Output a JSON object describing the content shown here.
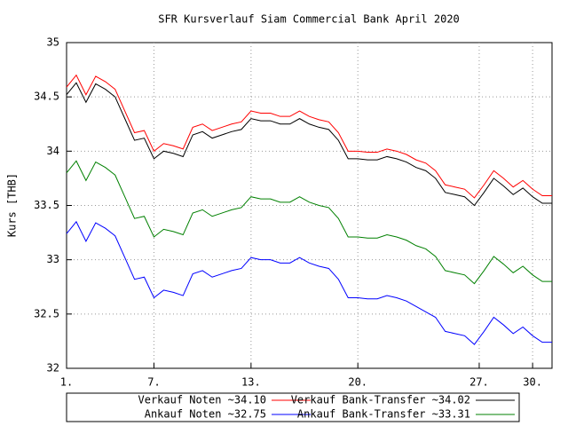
{
  "chart_data": {
    "type": "line",
    "title": "SFR Kursverlauf Siam Commercial Bank April 2020",
    "y_label": "Kurs [THB]",
    "x": [
      0,
      2,
      4,
      6,
      8,
      10,
      12,
      14,
      16,
      18,
      20,
      22,
      24,
      26,
      28,
      30,
      32,
      34,
      36,
      38,
      40,
      42,
      44,
      46,
      48,
      50,
      52,
      54,
      56,
      58,
      60,
      62,
      64,
      66,
      68,
      70,
      72,
      74,
      76,
      78,
      80,
      82,
      84,
      86,
      88,
      90,
      92,
      94,
      96,
      98,
      100
    ],
    "xlim": [
      0,
      100
    ],
    "xticks": [
      {
        "value": 0,
        "label": "1."
      },
      {
        "value": 18,
        "label": "7."
      },
      {
        "value": 38,
        "label": "13."
      },
      {
        "value": 60,
        "label": "20."
      },
      {
        "value": 85,
        "label": "27."
      },
      {
        "value": 96,
        "label": "30."
      }
    ],
    "ylim": [
      32,
      35
    ],
    "yticks": [
      32,
      32.5,
      33,
      33.5,
      34,
      34.5,
      35
    ],
    "grid": true,
    "legend": "bottom",
    "series": [
      {
        "name": "Verkauf Noten ~34.10",
        "color": "#ff0000",
        "values": [
          34.59,
          34.7,
          34.52,
          34.69,
          34.64,
          34.57,
          34.37,
          34.17,
          34.19,
          34.0,
          34.07,
          34.05,
          34.02,
          34.22,
          34.25,
          34.19,
          34.22,
          34.25,
          34.27,
          34.37,
          34.35,
          34.35,
          34.32,
          34.32,
          34.37,
          34.32,
          34.29,
          34.27,
          34.17,
          34.0,
          34.0,
          33.99,
          33.99,
          34.02,
          34.0,
          33.97,
          33.92,
          33.89,
          33.82,
          33.69,
          33.67,
          33.65,
          33.57,
          33.69,
          33.82,
          33.75,
          33.67,
          33.73,
          33.65,
          33.59,
          33.59
        ]
      },
      {
        "name": "Verkauf Bank-Transfer ~34.02",
        "color": "#000000",
        "values": [
          34.52,
          34.63,
          34.45,
          34.62,
          34.57,
          34.5,
          34.3,
          34.1,
          34.12,
          33.93,
          34.0,
          33.98,
          33.95,
          34.15,
          34.18,
          34.12,
          34.15,
          34.18,
          34.2,
          34.3,
          34.28,
          34.28,
          34.25,
          34.25,
          34.3,
          34.25,
          34.22,
          34.2,
          34.1,
          33.93,
          33.93,
          33.92,
          33.92,
          33.95,
          33.93,
          33.9,
          33.85,
          33.82,
          33.75,
          33.62,
          33.6,
          33.58,
          33.5,
          33.62,
          33.75,
          33.68,
          33.6,
          33.66,
          33.58,
          33.52,
          33.52
        ]
      },
      {
        "name": "Ankauf Noten ~32.75",
        "color": "#0000ff",
        "values": [
          33.24,
          33.35,
          33.17,
          33.34,
          33.29,
          33.22,
          33.02,
          32.82,
          32.84,
          32.65,
          32.72,
          32.7,
          32.67,
          32.87,
          32.9,
          32.84,
          32.87,
          32.9,
          32.92,
          33.02,
          33.0,
          33.0,
          32.97,
          32.97,
          33.02,
          32.97,
          32.94,
          32.92,
          32.82,
          32.65,
          32.65,
          32.64,
          32.64,
          32.67,
          32.65,
          32.62,
          32.57,
          32.52,
          32.47,
          32.34,
          32.32,
          32.3,
          32.22,
          32.34,
          32.47,
          32.4,
          32.32,
          32.38,
          32.3,
          32.24,
          32.24
        ]
      },
      {
        "name": "Ankauf Bank-Transfer ~33.31",
        "color": "#008000",
        "values": [
          33.8,
          33.91,
          33.73,
          33.9,
          33.85,
          33.78,
          33.58,
          33.38,
          33.4,
          33.21,
          33.28,
          33.26,
          33.23,
          33.43,
          33.46,
          33.4,
          33.43,
          33.46,
          33.48,
          33.58,
          33.56,
          33.56,
          33.53,
          33.53,
          33.58,
          33.53,
          33.5,
          33.48,
          33.38,
          33.21,
          33.21,
          33.2,
          33.2,
          33.23,
          33.21,
          33.18,
          33.13,
          33.1,
          33.03,
          32.9,
          32.88,
          32.86,
          32.78,
          32.9,
          33.03,
          32.96,
          32.88,
          32.94,
          32.86,
          32.8,
          32.8
        ]
      }
    ]
  }
}
